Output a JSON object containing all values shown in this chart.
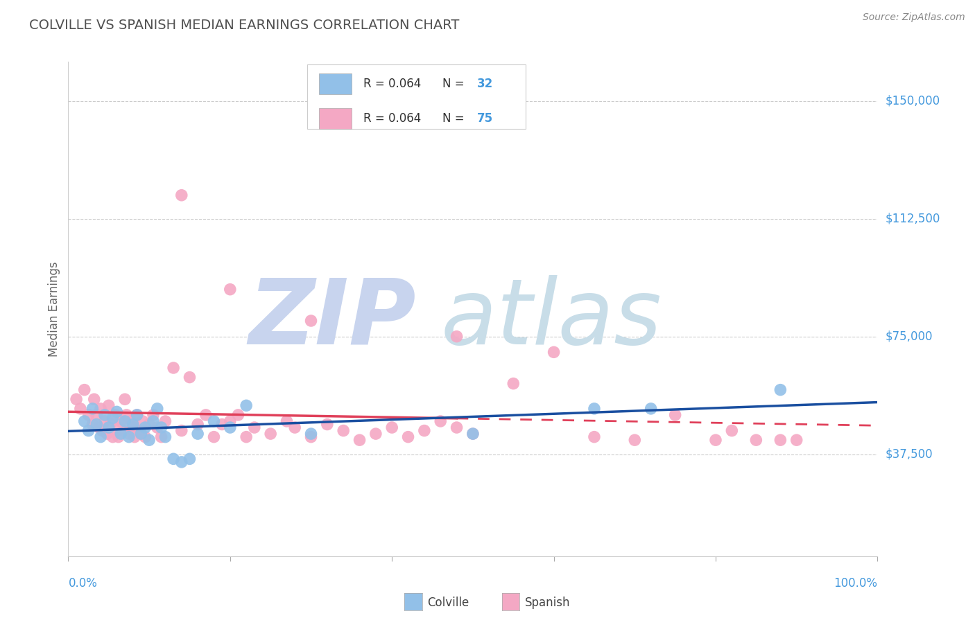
{
  "title": "COLVILLE VS SPANISH MEDIAN EARNINGS CORRELATION CHART",
  "source": "Source: ZipAtlas.com",
  "ylabel": "Median Earnings",
  "ytick_labels": [
    "$37,500",
    "$75,000",
    "$112,500",
    "$150,000"
  ],
  "ytick_values": [
    37500,
    75000,
    112500,
    150000
  ],
  "ylim": [
    5000,
    162500
  ],
  "xlim": [
    0.0,
    1.0
  ],
  "colville_color": "#92c0e8",
  "spanish_color": "#f4a8c4",
  "colville_line_color": "#1a4fa0",
  "spanish_line_color": "#e0405a",
  "watermark_zip_color": "#c8d8f0",
  "watermark_atlas_color": "#c8d8e8",
  "background_color": "#ffffff",
  "grid_color": "#cccccc",
  "title_color": "#505050",
  "axis_color": "#999999",
  "right_label_color": "#4499dd",
  "colville_x": [
    0.02,
    0.025,
    0.03,
    0.035,
    0.04,
    0.045,
    0.05,
    0.055,
    0.06,
    0.065,
    0.07,
    0.075,
    0.08,
    0.085,
    0.09,
    0.095,
    0.1,
    0.105,
    0.11,
    0.115,
    0.12,
    0.13,
    0.14,
    0.15,
    0.16,
    0.18,
    0.2,
    0.22,
    0.3,
    0.5,
    0.65,
    0.72,
    0.88
  ],
  "colville_y": [
    48000,
    45000,
    52000,
    47000,
    43000,
    50000,
    46000,
    49000,
    51000,
    44000,
    48000,
    43000,
    47000,
    50000,
    44000,
    46000,
    42000,
    48000,
    52000,
    46000,
    43000,
    36000,
    35000,
    36000,
    44000,
    48000,
    46000,
    53000,
    44000,
    44000,
    52000,
    52000,
    58000
  ],
  "spanish_x": [
    0.01,
    0.015,
    0.02,
    0.025,
    0.03,
    0.032,
    0.035,
    0.038,
    0.04,
    0.042,
    0.045,
    0.048,
    0.05,
    0.052,
    0.055,
    0.058,
    0.06,
    0.062,
    0.065,
    0.068,
    0.07,
    0.072,
    0.075,
    0.078,
    0.08,
    0.082,
    0.085,
    0.088,
    0.09,
    0.092,
    0.095,
    0.1,
    0.105,
    0.11,
    0.115,
    0.12,
    0.13,
    0.14,
    0.15,
    0.16,
    0.17,
    0.18,
    0.19,
    0.2,
    0.21,
    0.22,
    0.23,
    0.25,
    0.27,
    0.28,
    0.3,
    0.32,
    0.34,
    0.36,
    0.38,
    0.4,
    0.42,
    0.44,
    0.46,
    0.48,
    0.5,
    0.55,
    0.6,
    0.65,
    0.7,
    0.75,
    0.8,
    0.82,
    0.85,
    0.88,
    0.9,
    0.48,
    0.3,
    0.2,
    0.14
  ],
  "spanish_y": [
    55000,
    52000,
    58000,
    50000,
    47000,
    55000,
    50000,
    46000,
    52000,
    45000,
    48000,
    44000,
    53000,
    47000,
    43000,
    50000,
    46000,
    43000,
    48000,
    45000,
    55000,
    50000,
    44000,
    48000,
    46000,
    43000,
    50000,
    45000,
    44000,
    48000,
    43000,
    47000,
    50000,
    46000,
    43000,
    48000,
    65000,
    45000,
    62000,
    47000,
    50000,
    43000,
    47000,
    48000,
    50000,
    43000,
    46000,
    44000,
    48000,
    46000,
    43000,
    47000,
    45000,
    42000,
    44000,
    46000,
    43000,
    45000,
    48000,
    46000,
    44000,
    60000,
    70000,
    43000,
    42000,
    50000,
    42000,
    45000,
    42000,
    42000,
    42000,
    75000,
    80000,
    90000,
    120000
  ]
}
